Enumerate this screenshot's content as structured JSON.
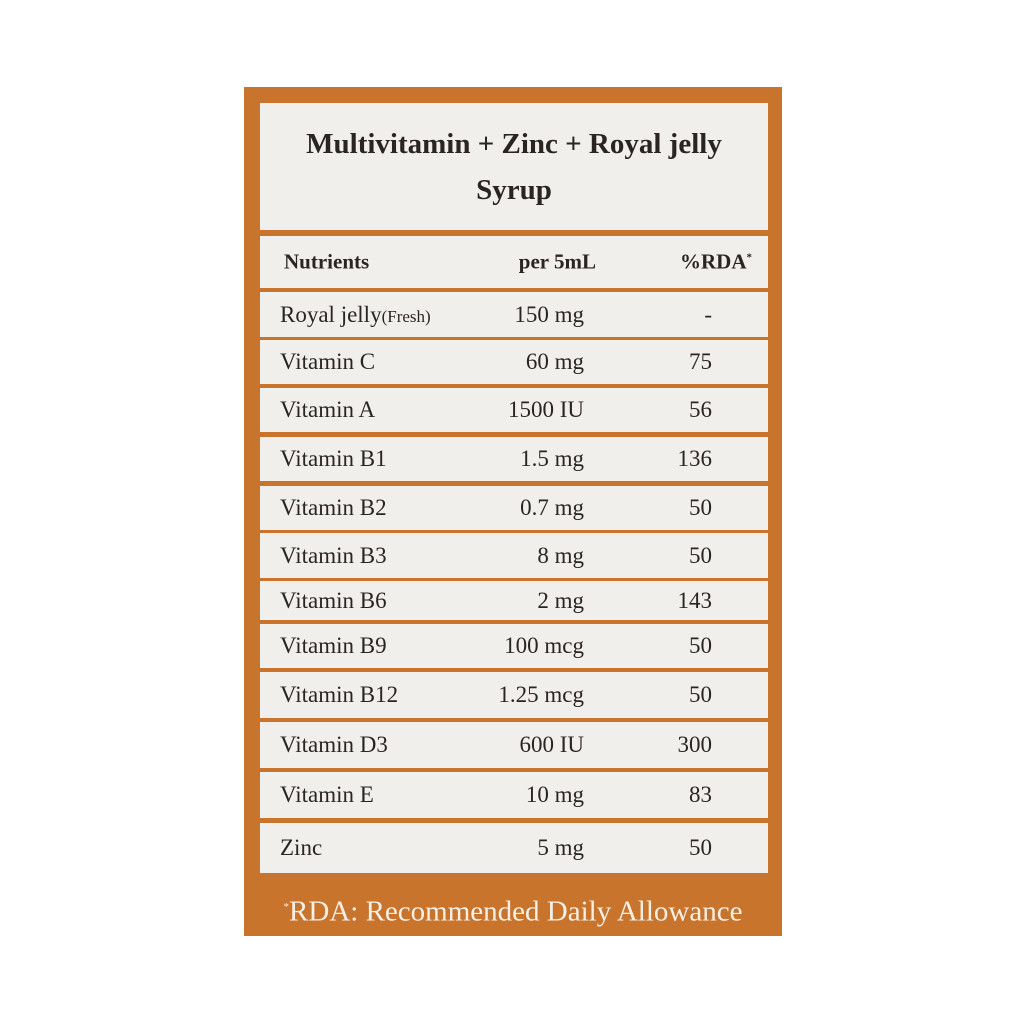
{
  "title_line1": "Multivitamin + Zinc + Royal jelly",
  "title_line2": "Syrup",
  "columns": {
    "nutrients": "Nutrients",
    "amount": "per 5mL",
    "rda": "%RDA",
    "rda_mark": "*"
  },
  "rows": [
    {
      "name": "Royal jelly",
      "note": "(Fresh)",
      "amount": "150 mg",
      "rda": "-"
    },
    {
      "name": "Vitamin C",
      "amount": "60 mg",
      "rda": "75"
    },
    {
      "name": "Vitamin A",
      "amount": "1500 IU",
      "rda": "56"
    },
    {
      "name": "Vitamin B1",
      "amount": "1.5 mg",
      "rda": "136"
    },
    {
      "name": "Vitamin B2",
      "amount": "0.7 mg",
      "rda": "50"
    },
    {
      "name": "Vitamin B3",
      "amount": "8 mg",
      "rda": "50"
    },
    {
      "name": "Vitamin B6",
      "amount": "2 mg",
      "rda": "143"
    },
    {
      "name": "Vitamin B9",
      "amount": "100 mcg",
      "rda": "50"
    },
    {
      "name": "Vitamin B12",
      "amount": "1.25 mcg",
      "rda": "50"
    },
    {
      "name": "Vitamin D3",
      "amount": "600 IU",
      "rda": "300"
    },
    {
      "name": "Vitamin E",
      "amount": "10 mg",
      "rda": "83"
    },
    {
      "name": "Zinc",
      "amount": "5 mg",
      "rda": "50"
    }
  ],
  "footer": {
    "mark": "*",
    "text": "RDA: Recommended Daily Allowance"
  },
  "colors": {
    "frame": "#c8742c",
    "panel": "#f1efec",
    "text": "#2a2522"
  }
}
